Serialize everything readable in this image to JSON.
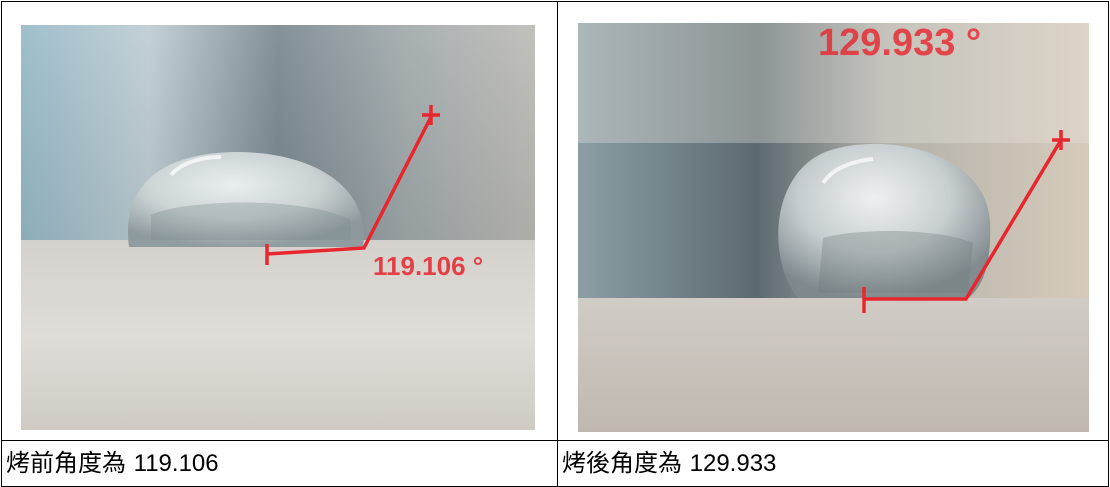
{
  "cells": [
    {
      "caption_label": "烤前角度為",
      "caption_value": "119.106",
      "overlay_text": "119.106 °"
    },
    {
      "caption_label": "烤後角度為",
      "caption_value": "129.933",
      "overlay_text": "129.933 °"
    }
  ],
  "colors": {
    "measurement_line": "#e8262e",
    "substrate": "#d8d4cf",
    "border": "#000000"
  },
  "icons": [
    "water-droplet",
    "measurement-crosshair"
  ]
}
